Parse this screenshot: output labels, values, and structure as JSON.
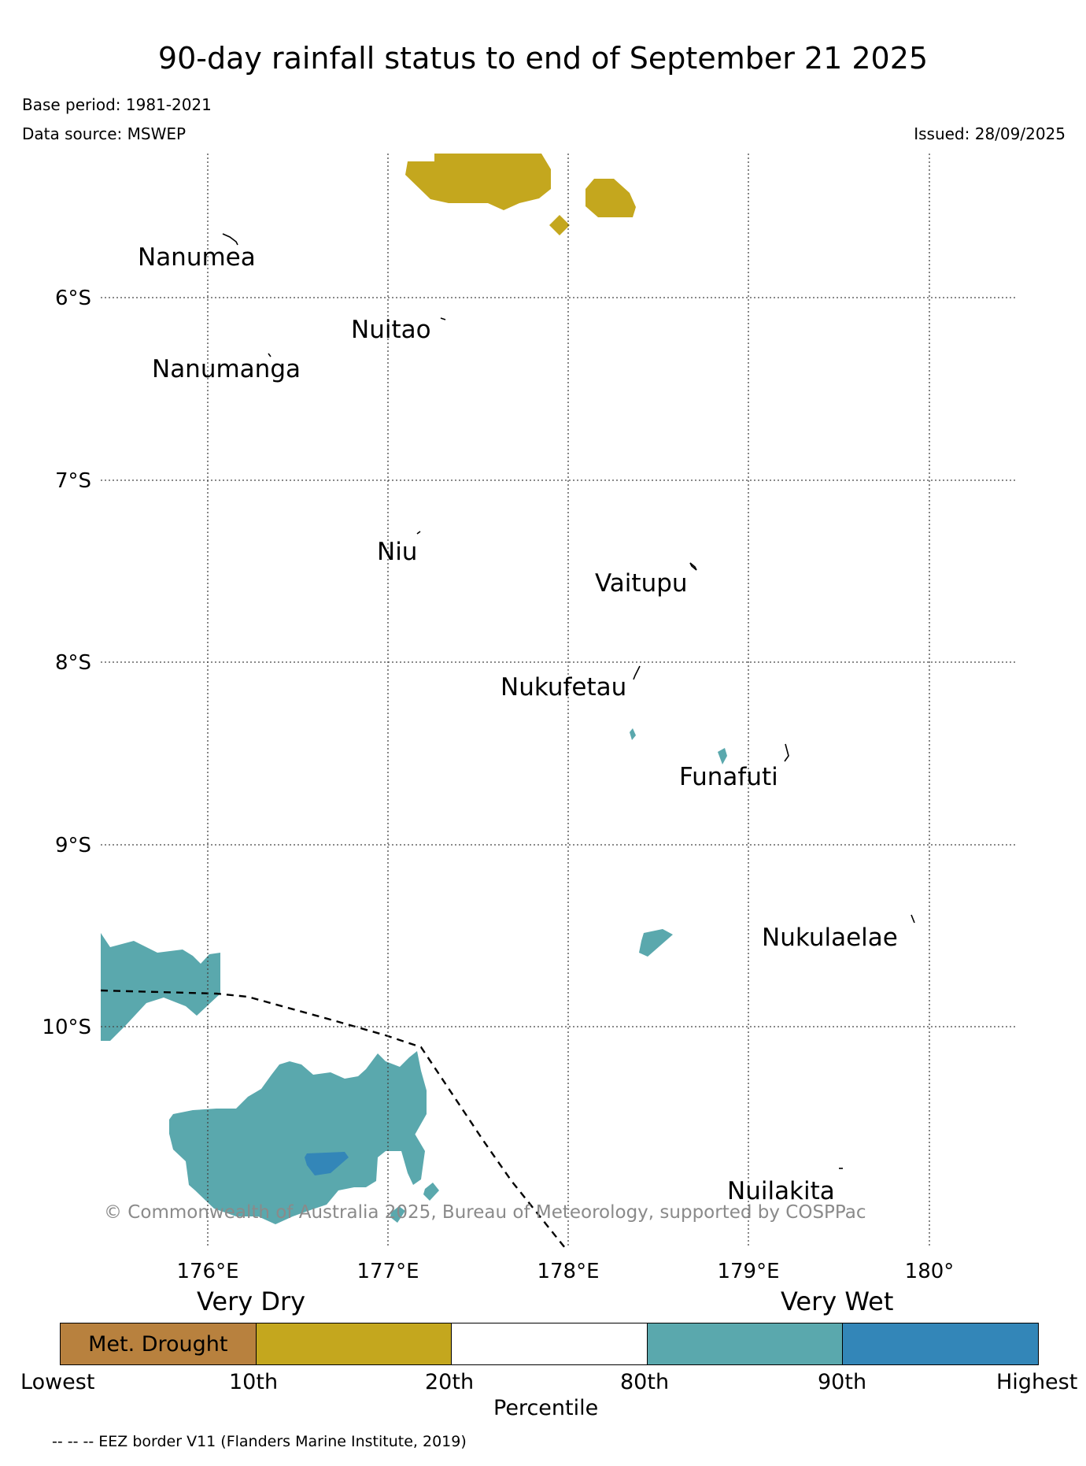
{
  "title": "90-day rainfall status to end of September 21 2025",
  "base_period": "Base period: 1981-2021",
  "data_source": "Data source: MSWEP",
  "issued": "Issued: 28/09/2025",
  "axes": {
    "lon_ticks": [
      "176°E",
      "177°E",
      "178°E",
      "179°E",
      "180°"
    ],
    "lat_ticks": [
      "6°S",
      "7°S",
      "8°S",
      "9°S",
      "10°S"
    ]
  },
  "islands": [
    {
      "name": "Nanumea"
    },
    {
      "name": "Nuitao"
    },
    {
      "name": "Nanumanga"
    },
    {
      "name": "Niu"
    },
    {
      "name": "Vaitupu"
    },
    {
      "name": "Nukufetau"
    },
    {
      "name": "Funafuti"
    },
    {
      "name": "Nukulaelae"
    },
    {
      "name": "Nuilakita"
    }
  ],
  "copyright": "© Commonwealth of Australia 2025, Bureau of Meteorology, supported by COSPPac",
  "legend": {
    "very_dry": "Very Dry",
    "very_wet": "Very Wet",
    "segments": [
      {
        "label": "Met. Drought",
        "color": "#b8813e"
      },
      {
        "label": "",
        "color": "#c4a71e"
      },
      {
        "label": "",
        "color": "#ffffff"
      },
      {
        "label": "",
        "color": "#5aa8ad"
      },
      {
        "label": "",
        "color": "#3386b8"
      }
    ],
    "ticks": [
      "Lowest",
      "10th",
      "20th",
      "80th",
      "90th",
      "Highest"
    ],
    "axis_label": "Percentile"
  },
  "eez_note": "-- -- -- EEZ border V11 (Flanders Marine Institute, 2019)",
  "colors": {
    "dry": "#c4a71e",
    "wet": "#5aa8ad",
    "very_wet": "#3386b8",
    "drought": "#b8813e"
  }
}
